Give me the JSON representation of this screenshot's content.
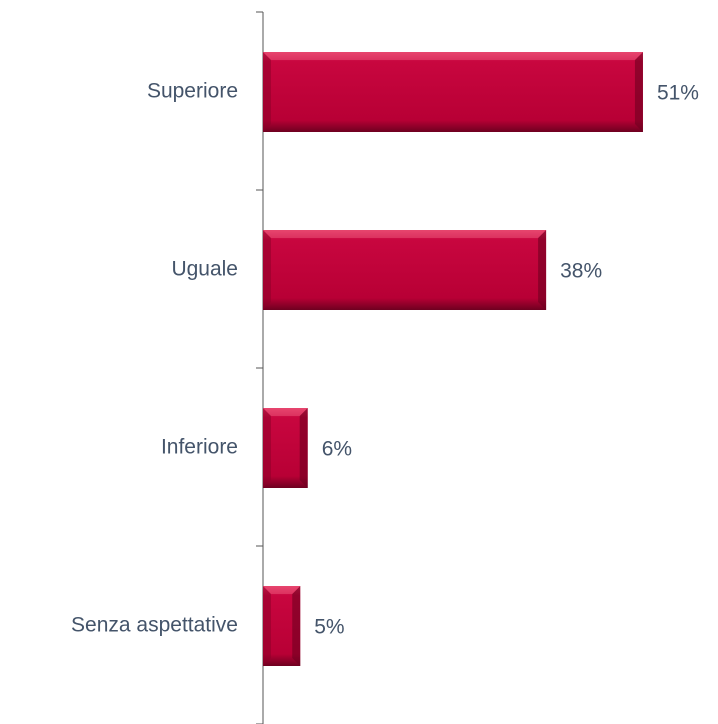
{
  "chart_data": {
    "type": "hbar",
    "categories": [
      "Superiore",
      "Uguale",
      "Inferiore",
      "Senza aspettative"
    ],
    "values": [
      51,
      38,
      6,
      5
    ],
    "value_labels": [
      "51%",
      "38%",
      "6%",
      "5%"
    ],
    "color": "#c0043a"
  }
}
